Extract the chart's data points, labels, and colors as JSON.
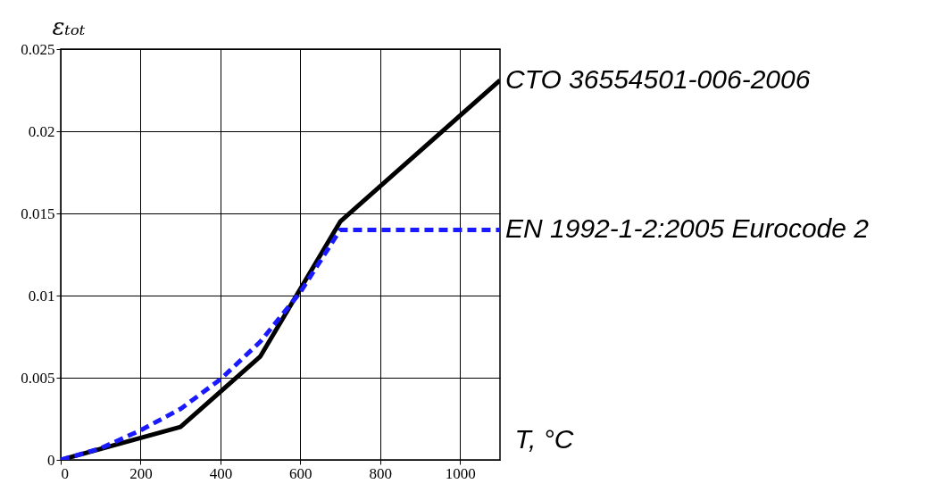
{
  "chart_data": {
    "type": "line",
    "xlabel": "T, °C",
    "ylabel": "εₜₒₜ",
    "xlim": [
      0,
      1100
    ],
    "xticks": [
      0,
      200,
      400,
      600,
      800,
      1000
    ],
    "ylim": [
      0,
      0.025
    ],
    "yticks": [
      0,
      0.005,
      0.01,
      0.015,
      0.02,
      0.025
    ],
    "grid": true,
    "legend": false,
    "marker": "none",
    "series": [
      {
        "name": "CTO 36554501-006-2006",
        "color": "#000000",
        "line_style": "solid",
        "x": [
          0,
          300,
          500,
          700,
          1100
        ],
        "values": [
          0,
          0.002,
          0.0063,
          0.0145,
          0.0231
        ]
      },
      {
        "name": "EN 1992-1-2:2005 Eurocode 2",
        "color": "#1a1aff",
        "line_style": "dashed",
        "x": [
          0,
          100,
          200,
          300,
          400,
          500,
          600,
          700,
          1100
        ],
        "values": [
          0,
          0.0007,
          0.0018,
          0.0031,
          0.0049,
          0.0072,
          0.0102,
          0.014,
          0.014
        ]
      }
    ]
  }
}
